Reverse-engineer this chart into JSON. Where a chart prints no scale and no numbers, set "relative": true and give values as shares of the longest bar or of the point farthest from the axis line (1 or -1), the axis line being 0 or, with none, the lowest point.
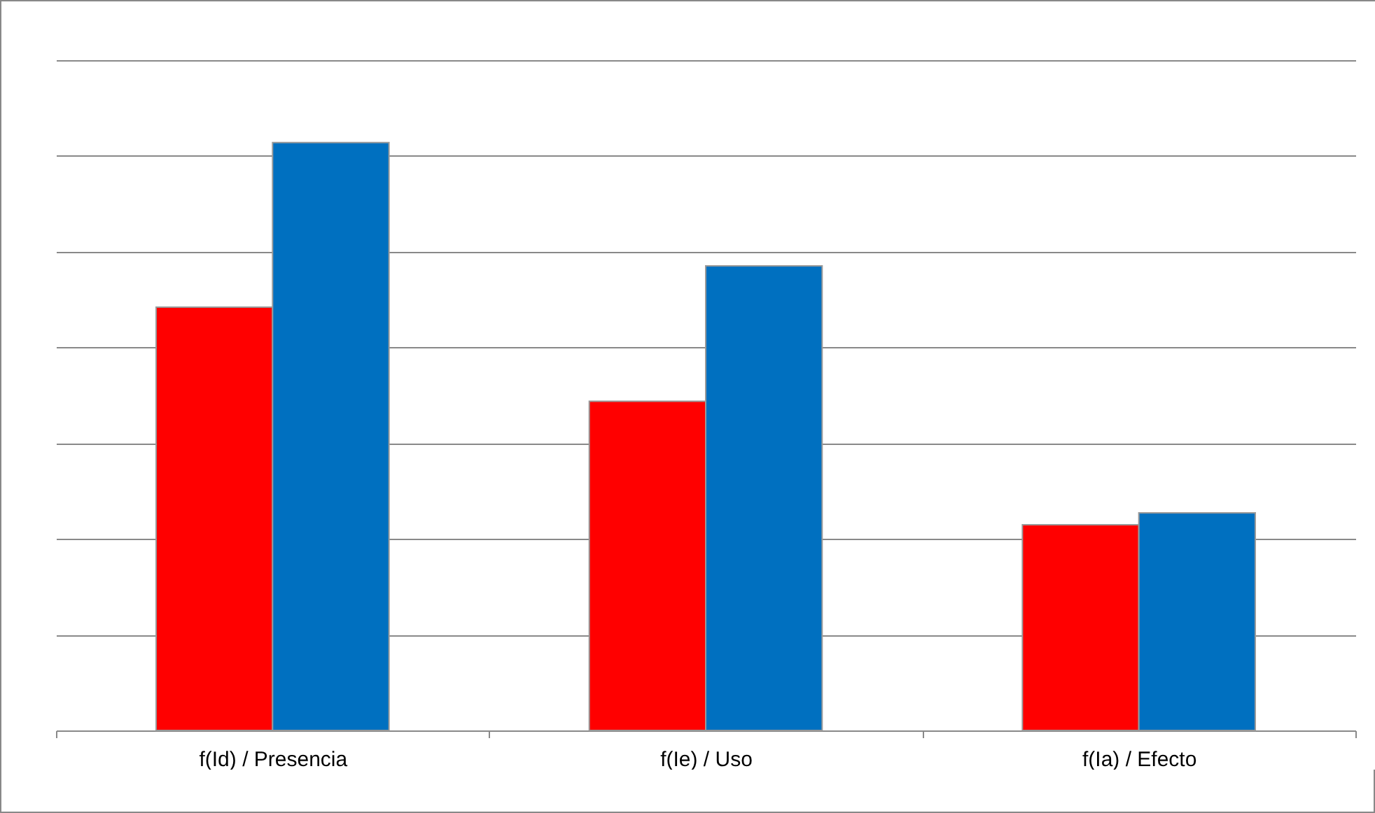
{
  "chart_data": {
    "type": "bar",
    "relative": true,
    "grid": true,
    "categories": [
      "f(Id) / Presencia",
      "f(Ie) / Uso",
      "f(Ia) / Efecto"
    ],
    "series": [
      {
        "color": "#ff0000",
        "values": [
          0.72,
          0.56,
          0.35
        ]
      },
      {
        "color": "#0070c0",
        "values": [
          1,
          0.79,
          0.37
        ]
      }
    ]
  }
}
